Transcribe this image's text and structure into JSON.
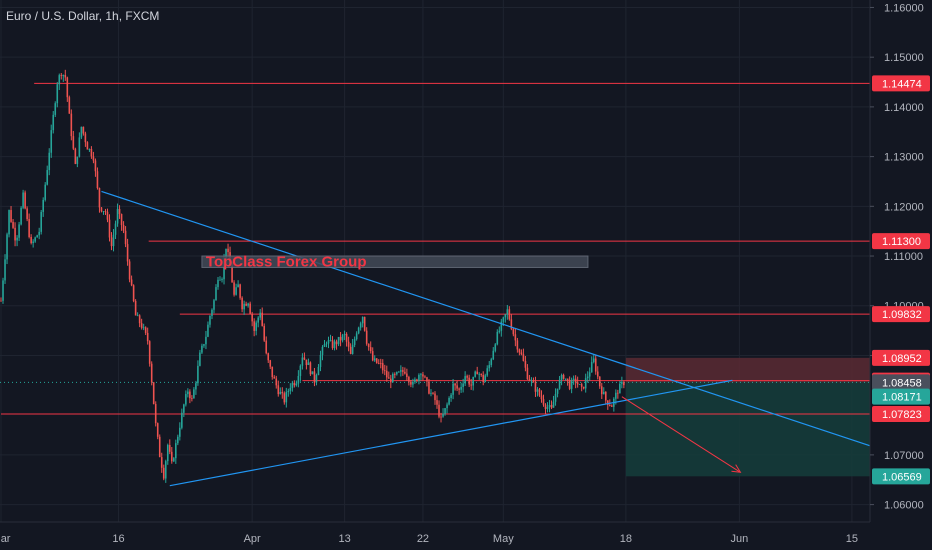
{
  "symbol_title": "Euro / U.S. Dollar, 1h, FXCM",
  "colors": {
    "background": "#131722",
    "grid": "#1f2430",
    "up": "#26a69a",
    "down": "#ef5350",
    "level": "#f23645",
    "trendline": "#2196f3",
    "current": "#4a4f5c",
    "stop_zone": "#5b2a33",
    "target_zone": "#153b3a",
    "watermark_box": "#434a57",
    "watermark_text": "#f23645"
  },
  "chart_data": {
    "type": "candlestick",
    "ylim": [
      1.0565,
      1.1615
    ],
    "xlim": [
      -1,
      865
    ],
    "y_ticks": [
      {
        "label": "1.16000",
        "value": 1.16
      },
      {
        "label": "1.15000",
        "value": 1.15
      },
      {
        "label": "1.14000",
        "value": 1.14
      },
      {
        "label": "1.13000",
        "value": 1.13
      },
      {
        "label": "1.12000",
        "value": 1.12
      },
      {
        "label": "1.11000",
        "value": 1.11
      },
      {
        "label": "1.10000",
        "value": 1.1
      },
      {
        "label": "1.09000",
        "value": 1.09
      },
      {
        "label": "1.07000",
        "value": 1.07
      },
      {
        "label": "1.06000",
        "value": 1.06
      }
    ],
    "x_ticks": [
      {
        "label": "Mar",
        "x": 0
      },
      {
        "label": "16",
        "x": 117
      },
      {
        "label": "Apr",
        "x": 250
      },
      {
        "label": "13",
        "x": 342
      },
      {
        "label": "22",
        "x": 420
      },
      {
        "label": "May",
        "x": 500
      },
      {
        "label": "18",
        "x": 622
      },
      {
        "label": "Jun",
        "x": 735
      },
      {
        "label": "15",
        "x": 847
      }
    ],
    "price_path": [
      [
        0,
        1.101
      ],
      [
        8,
        1.119
      ],
      [
        15,
        1.113
      ],
      [
        22,
        1.122
      ],
      [
        30,
        1.112
      ],
      [
        38,
        1.115
      ],
      [
        45,
        1.126
      ],
      [
        52,
        1.138
      ],
      [
        56,
        1.145
      ],
      [
        60,
        1.147
      ],
      [
        64,
        1.146
      ],
      [
        68,
        1.138
      ],
      [
        74,
        1.128
      ],
      [
        80,
        1.136
      ],
      [
        86,
        1.132
      ],
      [
        92,
        1.13
      ],
      [
        98,
        1.12
      ],
      [
        104,
        1.119
      ],
      [
        110,
        1.112
      ],
      [
        116,
        1.119
      ],
      [
        122,
        1.115
      ],
      [
        128,
        1.106
      ],
      [
        134,
        1.098
      ],
      [
        140,
        1.096
      ],
      [
        146,
        1.093
      ],
      [
        150,
        1.085
      ],
      [
        154,
        1.076
      ],
      [
        158,
        1.07
      ],
      [
        162,
        1.066
      ],
      [
        166,
        1.072
      ],
      [
        170,
        1.068
      ],
      [
        174,
        1.072
      ],
      [
        178,
        1.076
      ],
      [
        182,
        1.08
      ],
      [
        186,
        1.083
      ],
      [
        190,
        1.081
      ],
      [
        194,
        1.085
      ],
      [
        198,
        1.09
      ],
      [
        204,
        1.094
      ],
      [
        208,
        1.098
      ],
      [
        212,
        1.101
      ],
      [
        216,
        1.106
      ],
      [
        220,
        1.106
      ],
      [
        224,
        1.112
      ],
      [
        228,
        1.108
      ],
      [
        232,
        1.102
      ],
      [
        236,
        1.104
      ],
      [
        240,
        1.1
      ],
      [
        246,
        1.101
      ],
      [
        252,
        1.095
      ],
      [
        258,
        1.099
      ],
      [
        264,
        1.09
      ],
      [
        270,
        1.086
      ],
      [
        276,
        1.083
      ],
      [
        282,
        1.081
      ],
      [
        288,
        1.084
      ],
      [
        294,
        1.085
      ],
      [
        300,
        1.09
      ],
      [
        306,
        1.088
      ],
      [
        312,
        1.085
      ],
      [
        318,
        1.09
      ],
      [
        324,
        1.093
      ],
      [
        330,
        1.092
      ],
      [
        336,
        1.093
      ],
      [
        342,
        1.094
      ],
      [
        348,
        1.09
      ],
      [
        354,
        1.095
      ],
      [
        360,
        1.098
      ],
      [
        364,
        1.093
      ],
      [
        370,
        1.089
      ],
      [
        378,
        1.088
      ],
      [
        386,
        1.085
      ],
      [
        394,
        1.086
      ],
      [
        402,
        1.087
      ],
      [
        410,
        1.084
      ],
      [
        418,
        1.087
      ],
      [
        426,
        1.083
      ],
      [
        432,
        1.081
      ],
      [
        438,
        1.077
      ],
      [
        444,
        1.08
      ],
      [
        450,
        1.084
      ],
      [
        456,
        1.083
      ],
      [
        462,
        1.086
      ],
      [
        468,
        1.084
      ],
      [
        474,
        1.087
      ],
      [
        480,
        1.085
      ],
      [
        486,
        1.088
      ],
      [
        492,
        1.093
      ],
      [
        498,
        1.096
      ],
      [
        504,
        1.099
      ],
      [
        508,
        1.096
      ],
      [
        512,
        1.093
      ],
      [
        518,
        1.09
      ],
      [
        524,
        1.086
      ],
      [
        530,
        1.084
      ],
      [
        536,
        1.082
      ],
      [
        542,
        1.08
      ],
      [
        548,
        1.079
      ],
      [
        554,
        1.084
      ],
      [
        560,
        1.086
      ],
      [
        566,
        1.084
      ],
      [
        572,
        1.085
      ],
      [
        578,
        1.083
      ],
      [
        584,
        1.086
      ],
      [
        590,
        1.089
      ],
      [
        596,
        1.084
      ],
      [
        602,
        1.081
      ],
      [
        608,
        1.08
      ],
      [
        614,
        1.083
      ],
      [
        620,
        1.0846
      ]
    ],
    "level_lines": [
      {
        "value": 1.14474,
        "x_start": 33
      },
      {
        "value": 1.113,
        "x_start": 147
      },
      {
        "value": 1.09832,
        "x_start": 178
      },
      {
        "value": 1.08493,
        "x_start": 300
      },
      {
        "value": 1.07823,
        "x_start": 0
      }
    ],
    "trendlines": [
      {
        "from": [
          100,
          1.123
        ],
        "to": [
          870,
          1.0715
        ]
      },
      {
        "from": [
          168,
          1.0638
        ],
        "to": [
          728,
          1.085
        ]
      }
    ],
    "projection_arrow": {
      "from": [
        618,
        1.0817
      ],
      "to": [
        736,
        1.0665
      ]
    },
    "stop_zone": {
      "x_start": 622,
      "x_end": 870,
      "top": 1.08952,
      "bottom": 1.08458
    },
    "target_zone": {
      "x_start": 622,
      "x_end": 870,
      "top": 1.08458,
      "bottom": 1.06569
    },
    "current_price": 1.08458,
    "price_badges": [
      {
        "label": "1.14474",
        "value": 1.14474,
        "color": "#f23645"
      },
      {
        "label": "1.11300",
        "value": 1.113,
        "color": "#f23645"
      },
      {
        "label": "1.09832",
        "value": 1.09832,
        "color": "#f23645"
      },
      {
        "label": "1.08952",
        "value": 1.08952,
        "color": "#f23645"
      },
      {
        "label": "1.08493",
        "value": 1.08493,
        "color": "#f23645"
      },
      {
        "label": "1.08458",
        "value": 1.08458,
        "color": "#4a4f5c"
      },
      {
        "label": "1.08171",
        "value": 1.08171,
        "color": "#26a69a"
      },
      {
        "label": "1.07823",
        "value": 1.07823,
        "color": "#f23645"
      },
      {
        "label": "1.06569",
        "value": 1.06569,
        "color": "#26a69a"
      }
    ],
    "watermark": {
      "text": "TopClass Forex Group",
      "x": 200,
      "y_top": 1.11,
      "y_bottom": 1.1077,
      "width": 386
    }
  }
}
